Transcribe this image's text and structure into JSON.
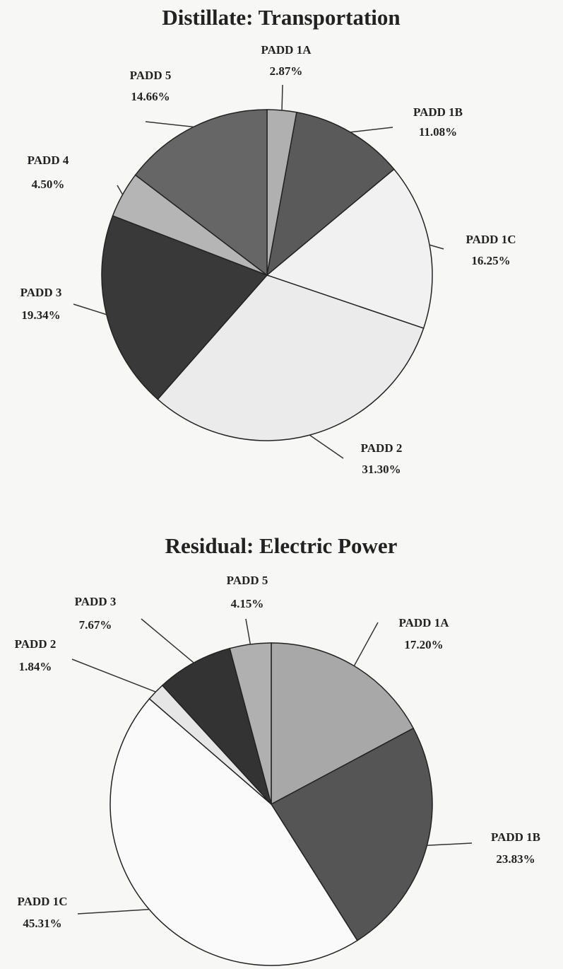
{
  "chart_data": [
    {
      "type": "pie",
      "title": "Distillate: Transportation",
      "categories": [
        "PADD 1A",
        "PADD 1B",
        "PADD 1C",
        "PADD 2",
        "PADD 3",
        "PADD 4",
        "PADD 5"
      ],
      "values": [
        2.87,
        11.08,
        16.25,
        31.3,
        19.34,
        4.5,
        14.66
      ],
      "value_labels": [
        "2.87%",
        "11.08%",
        "16.25%",
        "31.30%",
        "19.34%",
        "4.50%",
        "14.66%"
      ],
      "colors": [
        "#b0b0b0",
        "#5a5a5a",
        "#f1f1f1",
        "#ebebeb",
        "#393939",
        "#b5b5b5",
        "#666666"
      ]
    },
    {
      "type": "pie",
      "title": "Residual: Electric Power",
      "categories": [
        "PADD 1A",
        "PADD 1B",
        "PADD 1C",
        "PADD 2",
        "PADD 3",
        "PADD 5"
      ],
      "values": [
        17.2,
        23.83,
        45.31,
        1.84,
        7.67,
        4.15
      ],
      "value_labels": [
        "17.20%",
        "23.83%",
        "45.31%",
        "1.84%",
        "7.67%",
        "4.15%"
      ],
      "colors": [
        "#a8a8a8",
        "#555555",
        "#fafafa",
        "#e6e6e6",
        "#333333",
        "#b0b0b0"
      ]
    }
  ]
}
